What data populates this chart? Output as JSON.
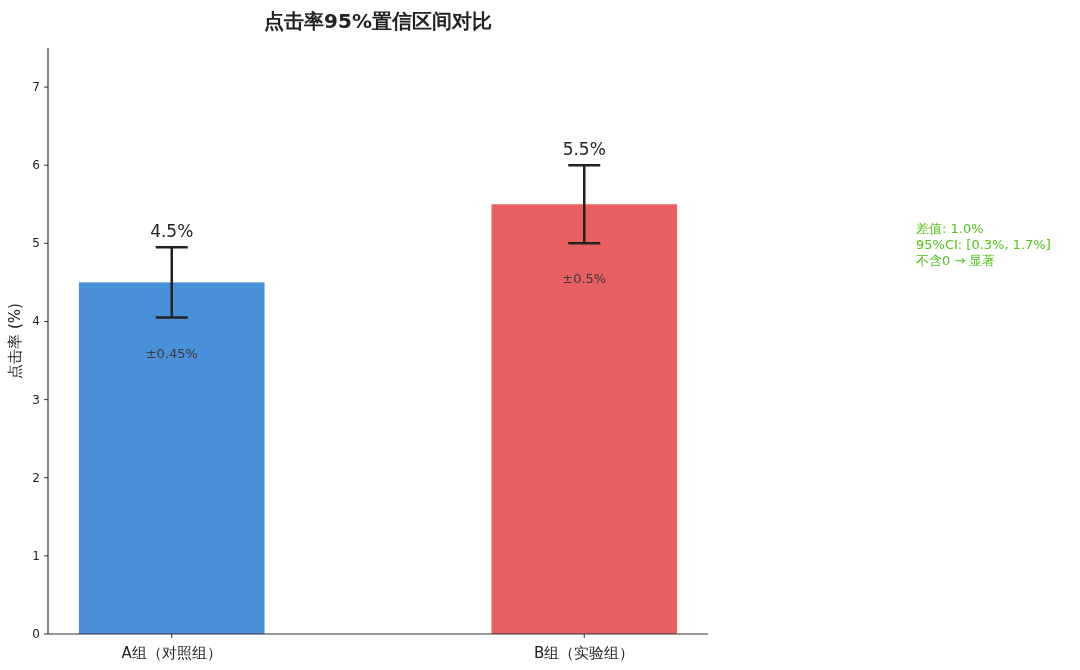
{
  "chart_data": {
    "type": "bar",
    "title": "点击率95%置信区间对比",
    "ylabel": "点击率 (%)",
    "categories": [
      "A组（对照组）",
      "B组（实验组）"
    ],
    "values": [
      4.5,
      5.5
    ],
    "colors": [
      "#4a90d9",
      "#e85f5f"
    ],
    "errors": [
      0.45,
      0.5
    ],
    "value_labels": [
      "4.5%",
      "5.5%"
    ],
    "ylim": [
      0,
      7.5
    ],
    "yticks": [
      0,
      1,
      2,
      3,
      4,
      5,
      6,
      7
    ],
    "annotations": [
      "±0.45%",
      "±0.5%",
      "差值: 1.0%\n95%CI: [0.3%, 1.7%]\n不含0 → 显著"
    ]
  }
}
